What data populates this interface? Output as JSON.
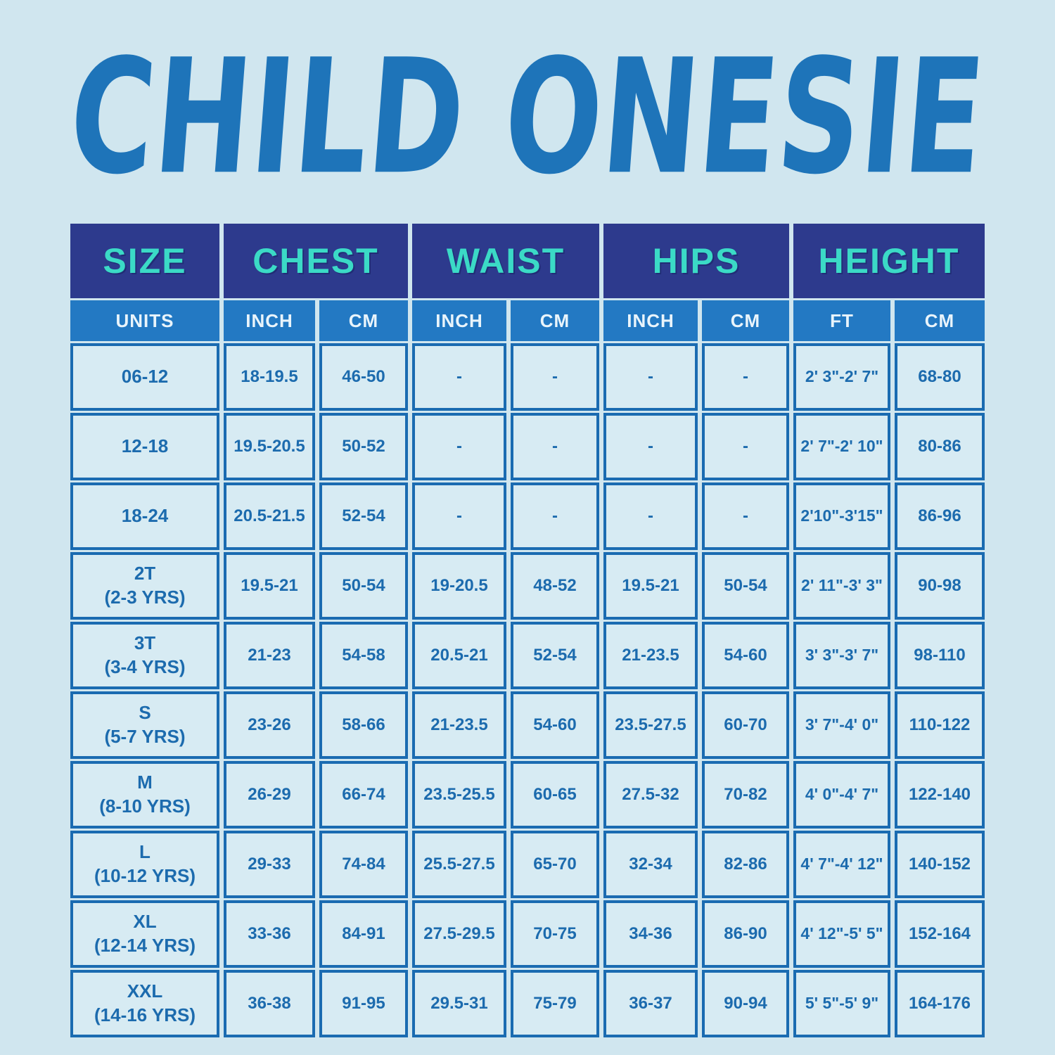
{
  "title": "CHILD ONESIE",
  "colors": {
    "page_background": "#d0e6ef",
    "title_blue": "#1e74b9",
    "header_navy": "#2d3a8d",
    "header_teal_text": "#3bdac6",
    "units_blue": "#2379c3",
    "units_text": "#e9f4fb",
    "cell_background": "#d7ebf3",
    "cell_border": "#1a6bb1",
    "cell_text": "#1c6bae"
  },
  "chart_data": {
    "type": "table",
    "title": "CHILD ONESIE",
    "column_groups": [
      "SIZE",
      "CHEST",
      "WAIST",
      "HIPS",
      "HEIGHT"
    ],
    "columns": [
      "UNITS",
      "INCH",
      "CM",
      "INCH",
      "CM",
      "INCH",
      "CM",
      "FT",
      "CM"
    ],
    "rows": [
      {
        "size": "06-12",
        "size_sub": "",
        "values": [
          "18-19.5",
          "46-50",
          "-",
          "-",
          "-",
          "-",
          "2' 3\"-2' 7\"",
          "68-80"
        ]
      },
      {
        "size": "12-18",
        "size_sub": "",
        "values": [
          "19.5-20.5",
          "50-52",
          "-",
          "-",
          "-",
          "-",
          "2' 7\"-2' 10\"",
          "80-86"
        ]
      },
      {
        "size": "18-24",
        "size_sub": "",
        "values": [
          "20.5-21.5",
          "52-54",
          "-",
          "-",
          "-",
          "-",
          "2'10\"-3'15\"",
          "86-96"
        ]
      },
      {
        "size": "2T",
        "size_sub": "(2-3 YRS)",
        "values": [
          "19.5-21",
          "50-54",
          "19-20.5",
          "48-52",
          "19.5-21",
          "50-54",
          "2' 11\"-3' 3\"",
          "90-98"
        ]
      },
      {
        "size": "3T",
        "size_sub": "(3-4 YRS)",
        "values": [
          "21-23",
          "54-58",
          "20.5-21",
          "52-54",
          "21-23.5",
          "54-60",
          "3' 3\"-3' 7\"",
          "98-110"
        ]
      },
      {
        "size": "S",
        "size_sub": "(5-7 YRS)",
        "values": [
          "23-26",
          "58-66",
          "21-23.5",
          "54-60",
          "23.5-27.5",
          "60-70",
          "3' 7\"-4' 0\"",
          "110-122"
        ]
      },
      {
        "size": "M",
        "size_sub": "(8-10 YRS)",
        "values": [
          "26-29",
          "66-74",
          "23.5-25.5",
          "60-65",
          "27.5-32",
          "70-82",
          "4' 0\"-4' 7\"",
          "122-140"
        ]
      },
      {
        "size": "L",
        "size_sub": "(10-12 YRS)",
        "values": [
          "29-33",
          "74-84",
          "25.5-27.5",
          "65-70",
          "32-34",
          "82-86",
          "4' 7\"-4' 12\"",
          "140-152"
        ]
      },
      {
        "size": "XL",
        "size_sub": "(12-14 YRS)",
        "values": [
          "33-36",
          "84-91",
          "27.5-29.5",
          "70-75",
          "34-36",
          "86-90",
          "4' 12\"-5' 5\"",
          "152-164"
        ]
      },
      {
        "size": "XXL",
        "size_sub": "(14-16 YRS)",
        "values": [
          "36-38",
          "91-95",
          "29.5-31",
          "75-79",
          "36-37",
          "90-94",
          "5' 5\"-5' 9\"",
          "164-176"
        ]
      }
    ]
  }
}
